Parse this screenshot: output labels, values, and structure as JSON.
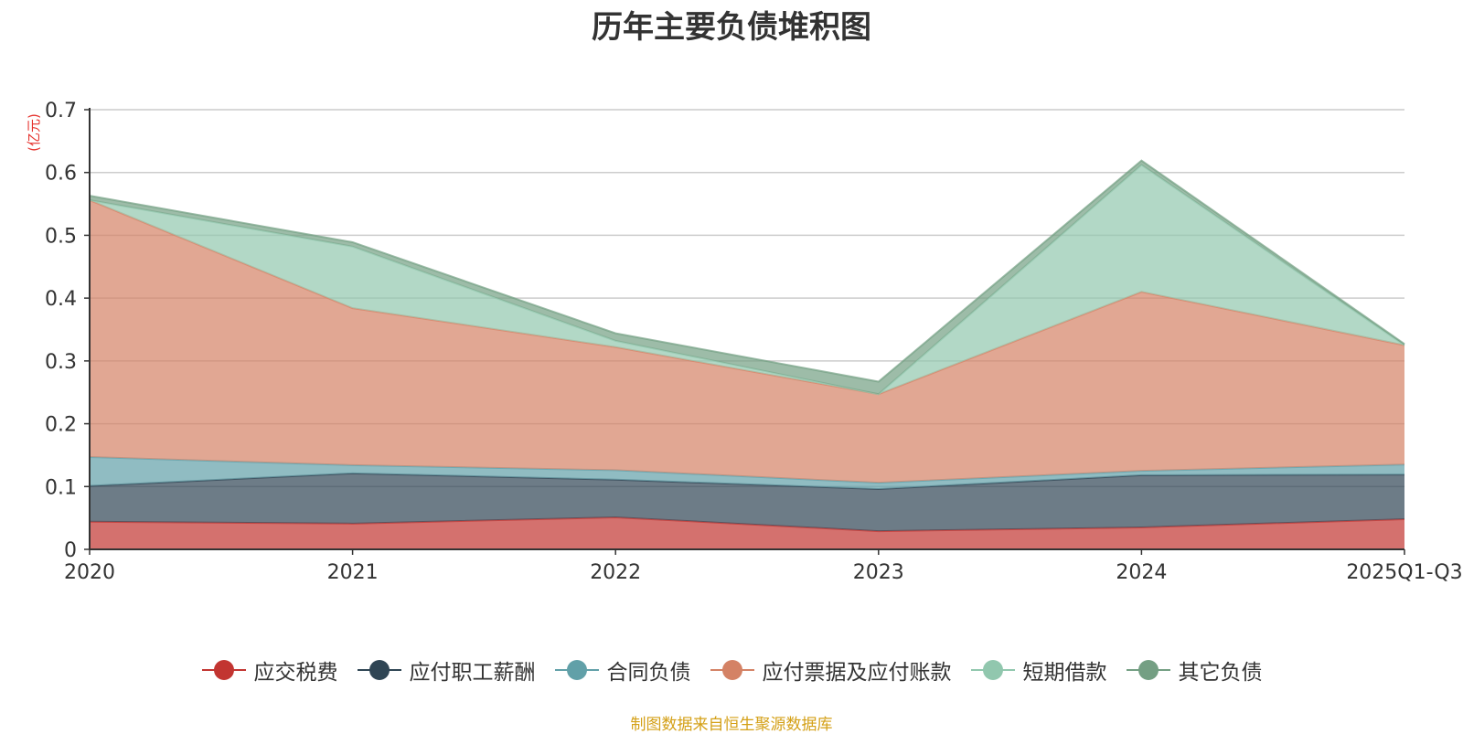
{
  "chart_data": {
    "type": "area",
    "title": "历年主要负债堆积图",
    "y_unit": "(亿元)",
    "categories": [
      "2020",
      "2021",
      "2022",
      "2023",
      "2024",
      "2025Q1-Q3"
    ],
    "ylim": [
      0,
      0.7
    ],
    "yticks": [
      "0",
      "0.1",
      "0.2",
      "0.3",
      "0.4",
      "0.5",
      "0.6",
      "0.7"
    ],
    "grid": true,
    "legend_position": "bottom",
    "stacked": true,
    "series": [
      {
        "name": "应交税费",
        "color": "#c23531",
        "values": [
          0.044,
          0.041,
          0.051,
          0.029,
          0.035,
          0.048
        ]
      },
      {
        "name": "应付职工薪酬",
        "color": "#2f4554",
        "values": [
          0.057,
          0.08,
          0.06,
          0.067,
          0.083,
          0.071
        ]
      },
      {
        "name": "合同负债",
        "color": "#61a0a8",
        "values": [
          0.046,
          0.013,
          0.015,
          0.01,
          0.007,
          0.016
        ]
      },
      {
        "name": "应付票据及应付账款",
        "color": "#d48265",
        "values": [
          0.409,
          0.25,
          0.196,
          0.141,
          0.285,
          0.19
        ]
      },
      {
        "name": "短期借款",
        "color": "#91c7ae",
        "values": [
          0.0,
          0.098,
          0.01,
          0.0,
          0.202,
          0.0
        ]
      },
      {
        "name": "其它负债",
        "color": "#749f83",
        "values": [
          0.007,
          0.007,
          0.012,
          0.02,
          0.007,
          0.002
        ]
      }
    ],
    "source_note": "制图数据来自恒生聚源数据库"
  }
}
